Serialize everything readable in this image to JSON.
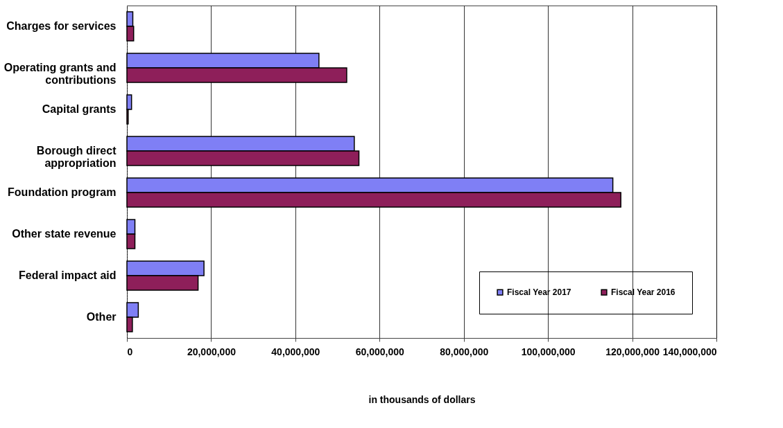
{
  "chart_data": {
    "type": "bar",
    "orientation": "horizontal",
    "xlabel": "in thousands of dollars",
    "categories": [
      "Charges for services",
      "Operating grants and\ncontributions",
      "Capital grants",
      "Borough direct\nappropriation",
      "Foundation program",
      "Other state revenue",
      "Federal impact aid",
      "Other"
    ],
    "series": [
      {
        "name": "Fiscal Year 2017",
        "color": "#7f7ff5",
        "values": [
          1400000,
          45600000,
          1100000,
          54000000,
          115400000,
          1900000,
          18300000,
          2700000
        ]
      },
      {
        "name": "Fiscal Year 2016",
        "color": "#8e1f5a",
        "values": [
          1600000,
          52200000,
          300000,
          55100000,
          117300000,
          1900000,
          16900000,
          1300000
        ]
      }
    ],
    "xlim": [
      0,
      140000000
    ],
    "xticks": [
      0,
      {
        "value": 20000000,
        "label": "20,000,000"
      },
      {
        "value": 40000000,
        "label": "40,000,000"
      },
      {
        "value": 60000000,
        "label": "60,000,000"
      },
      {
        "value": 80000000,
        "label": "80,000,000"
      },
      {
        "value": 100000000,
        "label": "100,000,000"
      },
      {
        "value": 120000000,
        "label": "120,000,000"
      },
      {
        "value": 140000000,
        "label": "140,000,000"
      }
    ],
    "grid": "x",
    "legend": "bottom right"
  }
}
